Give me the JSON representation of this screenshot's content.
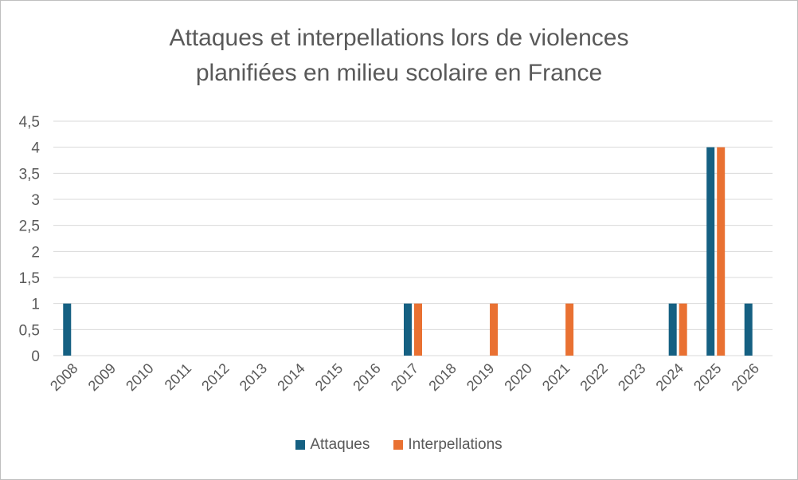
{
  "chart_data": {
    "type": "bar",
    "title_lines": [
      "Attaques et interpellations lors de violences",
      "planifiées en milieu scolaire en France"
    ],
    "categories": [
      "2008",
      "2009",
      "2010",
      "2011",
      "2012",
      "2013",
      "2014",
      "2015",
      "2016",
      "2017",
      "2018",
      "2019",
      "2020",
      "2021",
      "2022",
      "2023",
      "2024",
      "2025",
      "2026"
    ],
    "series": [
      {
        "name": "Attaques",
        "color": "#156082",
        "values": [
          1,
          0,
          0,
          0,
          0,
          0,
          0,
          0,
          0,
          1,
          0,
          0,
          0,
          0,
          0,
          0,
          1,
          4,
          1
        ]
      },
      {
        "name": "Interpellations",
        "color": "#e97132",
        "values": [
          0,
          0,
          0,
          0,
          0,
          0,
          0,
          0,
          0,
          1,
          0,
          1,
          0,
          1,
          0,
          0,
          1,
          4,
          0
        ]
      }
    ],
    "y_ticks": [
      "0",
      "0,5",
      "1",
      "1,5",
      "2",
      "2,5",
      "3",
      "3,5",
      "4",
      "4,5"
    ],
    "ylim": [
      0,
      4.5
    ],
    "grid": true,
    "legend_position": "bottom"
  }
}
